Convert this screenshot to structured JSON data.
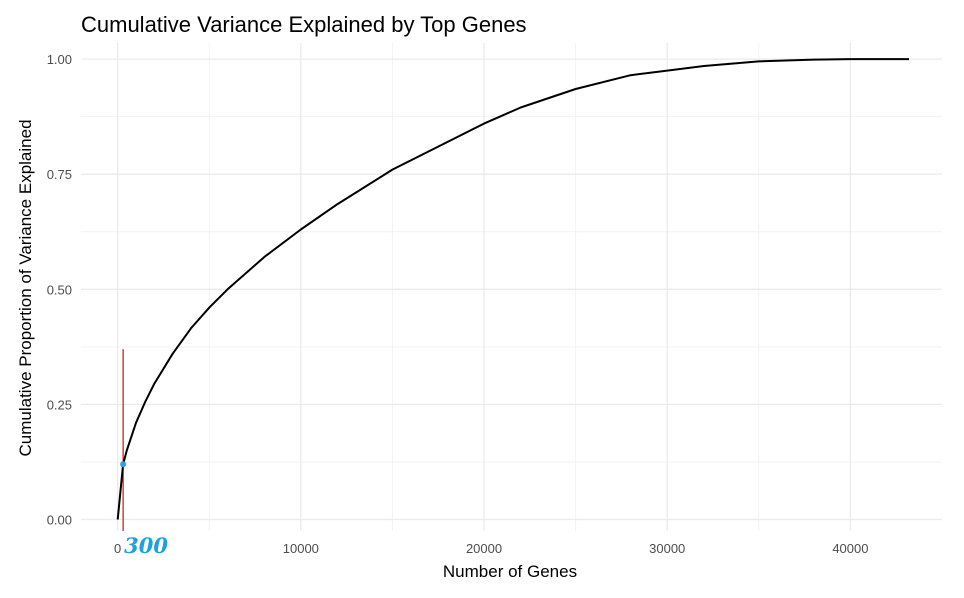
{
  "chart_data": {
    "type": "line",
    "title": "Cumulative Variance Explained by Top Genes",
    "xlabel": "Number of Genes",
    "ylabel": "Cumulative Proportion of Variance Explained",
    "xlim": [
      -2000,
      45000
    ],
    "ylim": [
      -0.025,
      1.035
    ],
    "x_ticks": [
      0,
      10000,
      20000,
      30000,
      40000
    ],
    "x_tick_labels": [
      "0",
      "10000",
      "20000",
      "30000",
      "40000"
    ],
    "y_ticks": [
      0,
      0.25,
      0.5,
      0.75,
      1.0
    ],
    "y_tick_labels": [
      "0.00",
      "0.25",
      "0.50",
      "0.75",
      "1.00"
    ],
    "grid": true,
    "series": [
      {
        "color": "#000000",
        "x": [
          1,
          300,
          500,
          1000,
          1500,
          2000,
          3000,
          4000,
          5000,
          6000,
          8000,
          10000,
          12000,
          15000,
          18000,
          20000,
          22000,
          25000,
          28000,
          30000,
          32000,
          35000,
          38000,
          40000,
          43200
        ],
        "y": [
          0.0,
          0.12,
          0.15,
          0.21,
          0.255,
          0.295,
          0.36,
          0.415,
          0.46,
          0.5,
          0.57,
          0.63,
          0.685,
          0.76,
          0.82,
          0.86,
          0.895,
          0.935,
          0.965,
          0.975,
          0.985,
          0.995,
          0.999,
          1.0,
          1.0
        ]
      }
    ],
    "vline": {
      "x": 300,
      "y_top": 0.37,
      "color": "#d42020"
    },
    "highlight_point": {
      "x": 300,
      "y": 0.12,
      "color": "#29a3e0"
    },
    "annotation": {
      "text": "300",
      "x": 300,
      "color": "#1e9fe0"
    }
  }
}
